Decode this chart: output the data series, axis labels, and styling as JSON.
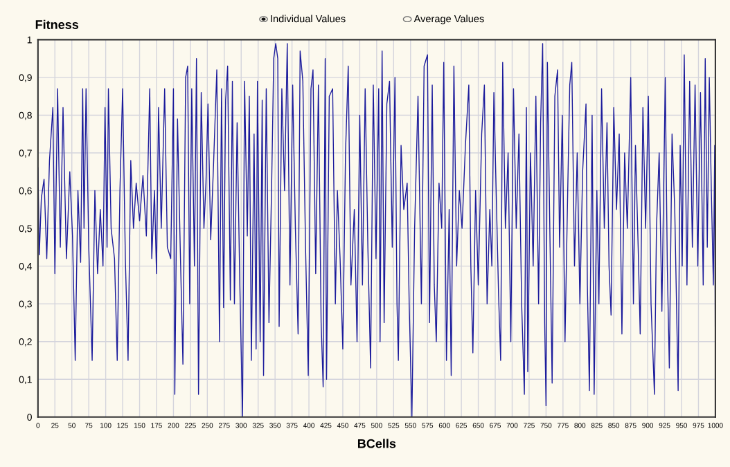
{
  "chart_data": {
    "type": "line",
    "xlabel": "BCells",
    "ylabel": "Fitness",
    "annotations": [
      "Individual Values",
      "Average Values"
    ],
    "xlim": [
      0,
      1000
    ],
    "xticks": [
      0,
      25,
      50,
      75,
      100,
      125,
      150,
      175,
      200,
      225,
      250,
      275,
      300,
      325,
      350,
      375,
      400,
      425,
      450,
      475,
      500,
      525,
      550,
      575,
      600,
      625,
      650,
      675,
      700,
      725,
      750,
      775,
      800,
      825,
      850,
      875,
      900,
      925,
      950,
      975,
      1000
    ],
    "ylim": [
      0,
      1
    ],
    "yticks": [
      0,
      {
        "value": 0.1,
        "label": "0,1"
      },
      {
        "value": 0.2,
        "label": "0,2"
      },
      {
        "value": 0.3,
        "label": "0,3"
      },
      {
        "value": 0.4,
        "label": "0,4"
      },
      {
        "value": 0.5,
        "label": "0,5"
      },
      {
        "value": 0.6,
        "label": "0,6"
      },
      {
        "value": 0.7,
        "label": "0,7"
      },
      {
        "value": 0.8,
        "label": "0,8"
      },
      {
        "value": 0.9,
        "label": "0,9"
      },
      1
    ],
    "grid": true,
    "legend": false,
    "marker": "none",
    "line_style": "solid",
    "series": [
      {
        "color": "#1c1c9c",
        "x": [
          0,
          2,
          5,
          9,
          13,
          17,
          22,
          25,
          29,
          33,
          37,
          42,
          47,
          51,
          55,
          59,
          63,
          66,
          68,
          71,
          75,
          80,
          84,
          88,
          92,
          96,
          99,
          102,
          104,
          108,
          113,
          117,
          121,
          125,
          129,
          133,
          137,
          141,
          145,
          150,
          155,
          160,
          165,
          168,
          172,
          175,
          178,
          182,
          187,
          191,
          196,
          200,
          202,
          206,
          210,
          214,
          218,
          221,
          224,
          227,
          231,
          234,
          237,
          241,
          245,
          248,
          251,
          255,
          259,
          264,
          268,
          271,
          274,
          277,
          280,
          284,
          287,
          290,
          294,
          298,
          302,
          305,
          309,
          312,
          315,
          319,
          322,
          324,
          328,
          331,
          333,
          337,
          341,
          345,
          348,
          351,
          354,
          356,
          360,
          364,
          368,
          372,
          376,
          380,
          384,
          387,
          391,
          395,
          399,
          403,
          406,
          410,
          414,
          418,
          421,
          424,
          426,
          430,
          435,
          439,
          442,
          446,
          450,
          454,
          458,
          462,
          467,
          471,
          475,
          479,
          483,
          487,
          491,
          495,
          499,
          503,
          505,
          508,
          511,
          515,
          519,
          523,
          527,
          530,
          532,
          536,
          540,
          545,
          548,
          552,
          556,
          561,
          566,
          570,
          575,
          578,
          582,
          585,
          588,
          592,
          596,
          599,
          603,
          607,
          610,
          614,
          618,
          622,
          626,
          631,
          636,
          639,
          642,
          646,
          650,
          655,
          659,
          663,
          667,
          670,
          673,
          677,
          680,
          683,
          686,
          690,
          694,
          698,
          702,
          706,
          710,
          714,
          718,
          721,
          723,
          727,
          731,
          735,
          739,
          742,
          745,
          748,
          750,
          752,
          756,
          759,
          763,
          767,
          770,
          774,
          778,
          782,
          785,
          788,
          792,
          796,
          800,
          804,
          809,
          811,
          814,
          818,
          821,
          825,
          828,
          832,
          836,
          840,
          843,
          846,
          850,
          854,
          858,
          862,
          866,
          870,
          875,
          879,
          882,
          886,
          889,
          893,
          897,
          901,
          905,
          910,
          913,
          917,
          921,
          926,
          929,
          932,
          936,
          940,
          945,
          948,
          951,
          954,
          958,
          962,
          966,
          970,
          974,
          978,
          982,
          985,
          988,
          991,
          994,
          997,
          999,
          1000
        ],
        "values": [
          0.66,
          0.43,
          0.58,
          0.63,
          0.42,
          0.68,
          0.82,
          0.38,
          0.87,
          0.45,
          0.82,
          0.42,
          0.65,
          0.48,
          0.15,
          0.6,
          0.41,
          0.87,
          0.5,
          0.87,
          0.45,
          0.15,
          0.6,
          0.38,
          0.55,
          0.4,
          0.82,
          0.45,
          0.87,
          0.5,
          0.42,
          0.15,
          0.6,
          0.87,
          0.42,
          0.15,
          0.68,
          0.5,
          0.62,
          0.52,
          0.64,
          0.48,
          0.87,
          0.42,
          0.6,
          0.38,
          0.82,
          0.5,
          0.87,
          0.45,
          0.42,
          0.87,
          0.06,
          0.79,
          0.45,
          0.14,
          0.9,
          0.93,
          0.3,
          0.87,
          0.4,
          0.95,
          0.06,
          0.86,
          0.5,
          0.62,
          0.83,
          0.47,
          0.66,
          0.92,
          0.2,
          0.87,
          0.29,
          0.84,
          0.93,
          0.31,
          0.89,
          0.3,
          0.78,
          0.35,
          0.0,
          0.89,
          0.48,
          0.85,
          0.15,
          0.75,
          0.18,
          0.89,
          0.2,
          0.84,
          0.11,
          0.87,
          0.25,
          0.62,
          0.95,
          0.99,
          0.95,
          0.24,
          0.87,
          0.6,
          0.99,
          0.35,
          0.88,
          0.5,
          0.22,
          0.97,
          0.89,
          0.45,
          0.11,
          0.87,
          0.92,
          0.38,
          0.88,
          0.25,
          0.08,
          0.95,
          0.1,
          0.85,
          0.87,
          0.3,
          0.6,
          0.42,
          0.18,
          0.7,
          0.93,
          0.35,
          0.55,
          0.2,
          0.8,
          0.35,
          0.87,
          0.45,
          0.13,
          0.88,
          0.42,
          0.87,
          0.2,
          0.97,
          0.25,
          0.83,
          0.89,
          0.45,
          0.9,
          0.3,
          0.15,
          0.72,
          0.55,
          0.62,
          0.3,
          0.0,
          0.5,
          0.85,
          0.3,
          0.93,
          0.96,
          0.25,
          0.88,
          0.35,
          0.2,
          0.62,
          0.5,
          0.94,
          0.15,
          0.55,
          0.11,
          0.93,
          0.4,
          0.6,
          0.5,
          0.72,
          0.88,
          0.4,
          0.17,
          0.6,
          0.35,
          0.75,
          0.88,
          0.3,
          0.55,
          0.4,
          0.86,
          0.55,
          0.32,
          0.15,
          0.94,
          0.5,
          0.7,
          0.2,
          0.87,
          0.5,
          0.75,
          0.3,
          0.06,
          0.82,
          0.12,
          0.7,
          0.4,
          0.85,
          0.3,
          0.78,
          0.99,
          0.25,
          0.03,
          0.94,
          0.45,
          0.09,
          0.85,
          0.92,
          0.45,
          0.8,
          0.2,
          0.6,
          0.88,
          0.94,
          0.4,
          0.7,
          0.3,
          0.65,
          0.83,
          0.35,
          0.07,
          0.8,
          0.06,
          0.6,
          0.3,
          0.87,
          0.5,
          0.78,
          0.4,
          0.27,
          0.82,
          0.55,
          0.75,
          0.22,
          0.7,
          0.5,
          0.9,
          0.3,
          0.72,
          0.45,
          0.22,
          0.82,
          0.5,
          0.85,
          0.3,
          0.06,
          0.5,
          0.7,
          0.28,
          0.9,
          0.4,
          0.13,
          0.75,
          0.55,
          0.07,
          0.72,
          0.4,
          0.96,
          0.35,
          0.89,
          0.45,
          0.88,
          0.4,
          0.86,
          0.35,
          0.95,
          0.45,
          0.9,
          0.6,
          0.35,
          0.72,
          0.07
        ]
      }
    ]
  }
}
